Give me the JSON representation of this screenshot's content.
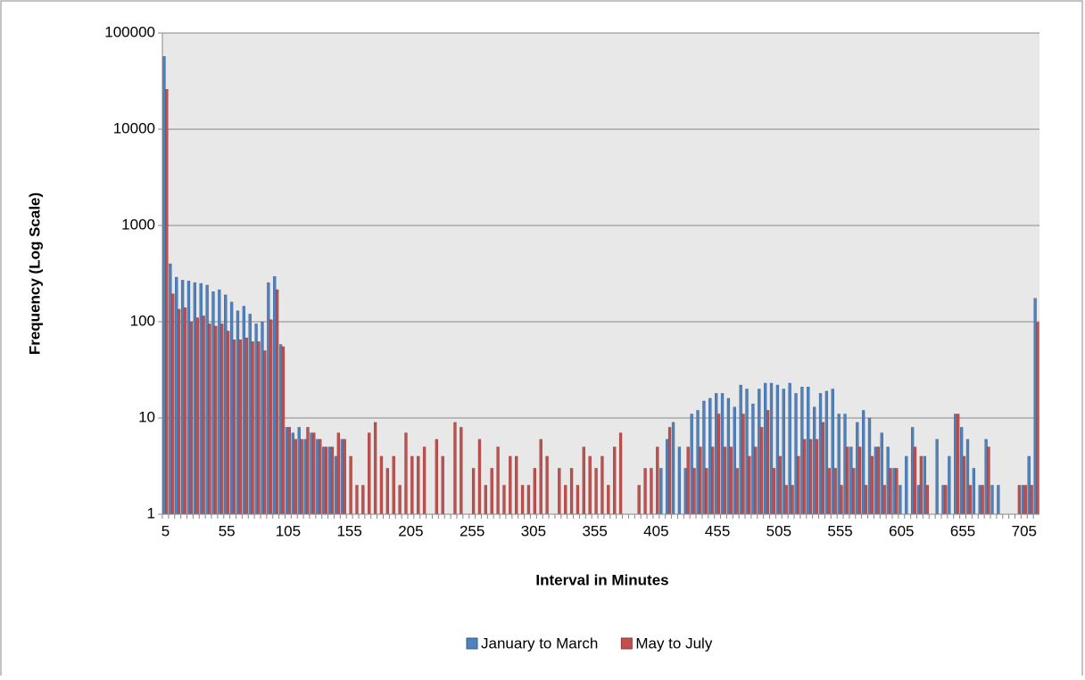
{
  "chart_data": {
    "type": "bar",
    "categories": [
      "5",
      null,
      null,
      null,
      null,
      null,
      null,
      null,
      null,
      null,
      "55",
      null,
      null,
      null,
      null,
      null,
      null,
      null,
      null,
      null,
      "105",
      null,
      null,
      null,
      null,
      null,
      null,
      null,
      null,
      null,
      "155",
      null,
      null,
      null,
      null,
      null,
      null,
      null,
      null,
      null,
      "205",
      null,
      null,
      null,
      null,
      null,
      null,
      null,
      null,
      null,
      "255",
      null,
      null,
      null,
      null,
      null,
      null,
      null,
      null,
      null,
      "305",
      null,
      null,
      null,
      null,
      null,
      null,
      null,
      null,
      null,
      "355",
      null,
      null,
      null,
      null,
      null,
      null,
      null,
      null,
      null,
      "405",
      null,
      null,
      null,
      null,
      null,
      null,
      null,
      null,
      null,
      "455",
      null,
      null,
      null,
      null,
      null,
      null,
      null,
      null,
      null,
      "505",
      null,
      null,
      null,
      null,
      null,
      null,
      null,
      null,
      null,
      "555",
      null,
      null,
      null,
      null,
      null,
      null,
      null,
      null,
      null,
      "605",
      null,
      null,
      null,
      null,
      null,
      null,
      null,
      null,
      null,
      "655",
      null,
      null,
      null,
      null,
      null,
      null,
      null,
      null,
      null,
      "705",
      null,
      null
    ],
    "series": [
      {
        "name": "January to March",
        "color": "#4f81bd",
        "values": [
          57000,
          400,
          290,
          270,
          265,
          255,
          250,
          240,
          205,
          215,
          190,
          160,
          130,
          145,
          120,
          95,
          100,
          255,
          295,
          58,
          8,
          7,
          8,
          6,
          7,
          6,
          5,
          5,
          4,
          6,
          null,
          null,
          null,
          null,
          null,
          null,
          null,
          null,
          null,
          null,
          null,
          null,
          null,
          null,
          null,
          null,
          null,
          null,
          null,
          null,
          null,
          null,
          null,
          null,
          null,
          null,
          null,
          null,
          null,
          null,
          null,
          null,
          null,
          null,
          null,
          null,
          null,
          null,
          null,
          null,
          null,
          null,
          null,
          null,
          null,
          null,
          null,
          null,
          null,
          null,
          null,
          3,
          6,
          9,
          5,
          3,
          11,
          12,
          15,
          16,
          18,
          18,
          16,
          13,
          22,
          20,
          14,
          20,
          23,
          23,
          22,
          20,
          23,
          18,
          21,
          21,
          13,
          18,
          19,
          20,
          11,
          11,
          5,
          9,
          12,
          10,
          5,
          7,
          5,
          3,
          2,
          4,
          8,
          2,
          4,
          null,
          6,
          2,
          4,
          11,
          8,
          6,
          3,
          2,
          6,
          2,
          2,
          null,
          null,
          null,
          2,
          4,
          175
        ]
      },
      {
        "name": "May to July",
        "color": "#c0504d",
        "values": [
          26000,
          195,
          135,
          140,
          100,
          110,
          115,
          95,
          90,
          95,
          80,
          65,
          65,
          68,
          62,
          62,
          50,
          105,
          215,
          55,
          8,
          6,
          6,
          8,
          7,
          6,
          5,
          5,
          7,
          6,
          4,
          2,
          2,
          7,
          9,
          4,
          3,
          4,
          2,
          7,
          4,
          4,
          5,
          null,
          6,
          4,
          null,
          9,
          8,
          null,
          3,
          6,
          2,
          3,
          5,
          2,
          4,
          4,
          2,
          2,
          3,
          6,
          4,
          null,
          3,
          2,
          3,
          2,
          5,
          4,
          3,
          4,
          2,
          5,
          7,
          null,
          null,
          2,
          3,
          3,
          5,
          null,
          8,
          null,
          null,
          5,
          3,
          5,
          3,
          5,
          11,
          5,
          5,
          3,
          11,
          4,
          5,
          8,
          12,
          3,
          4,
          2,
          2,
          4,
          6,
          6,
          6,
          9,
          3,
          3,
          2,
          5,
          3,
          5,
          2,
          4,
          5,
          2,
          3,
          3,
          null,
          null,
          5,
          4,
          2,
          null,
          null,
          2,
          null,
          11,
          4,
          2,
          null,
          2,
          5,
          null,
          null,
          null,
          null,
          2,
          2,
          2,
          98
        ]
      }
    ],
    "x_label": "Interval in Minutes",
    "y_label": "Frequency (Log Scale)",
    "ylim": [
      1,
      100000
    ],
    "yticks": [
      1,
      10,
      100,
      1000,
      10000,
      100000
    ],
    "log_scale": true,
    "grid": true,
    "legend": "bottom"
  }
}
